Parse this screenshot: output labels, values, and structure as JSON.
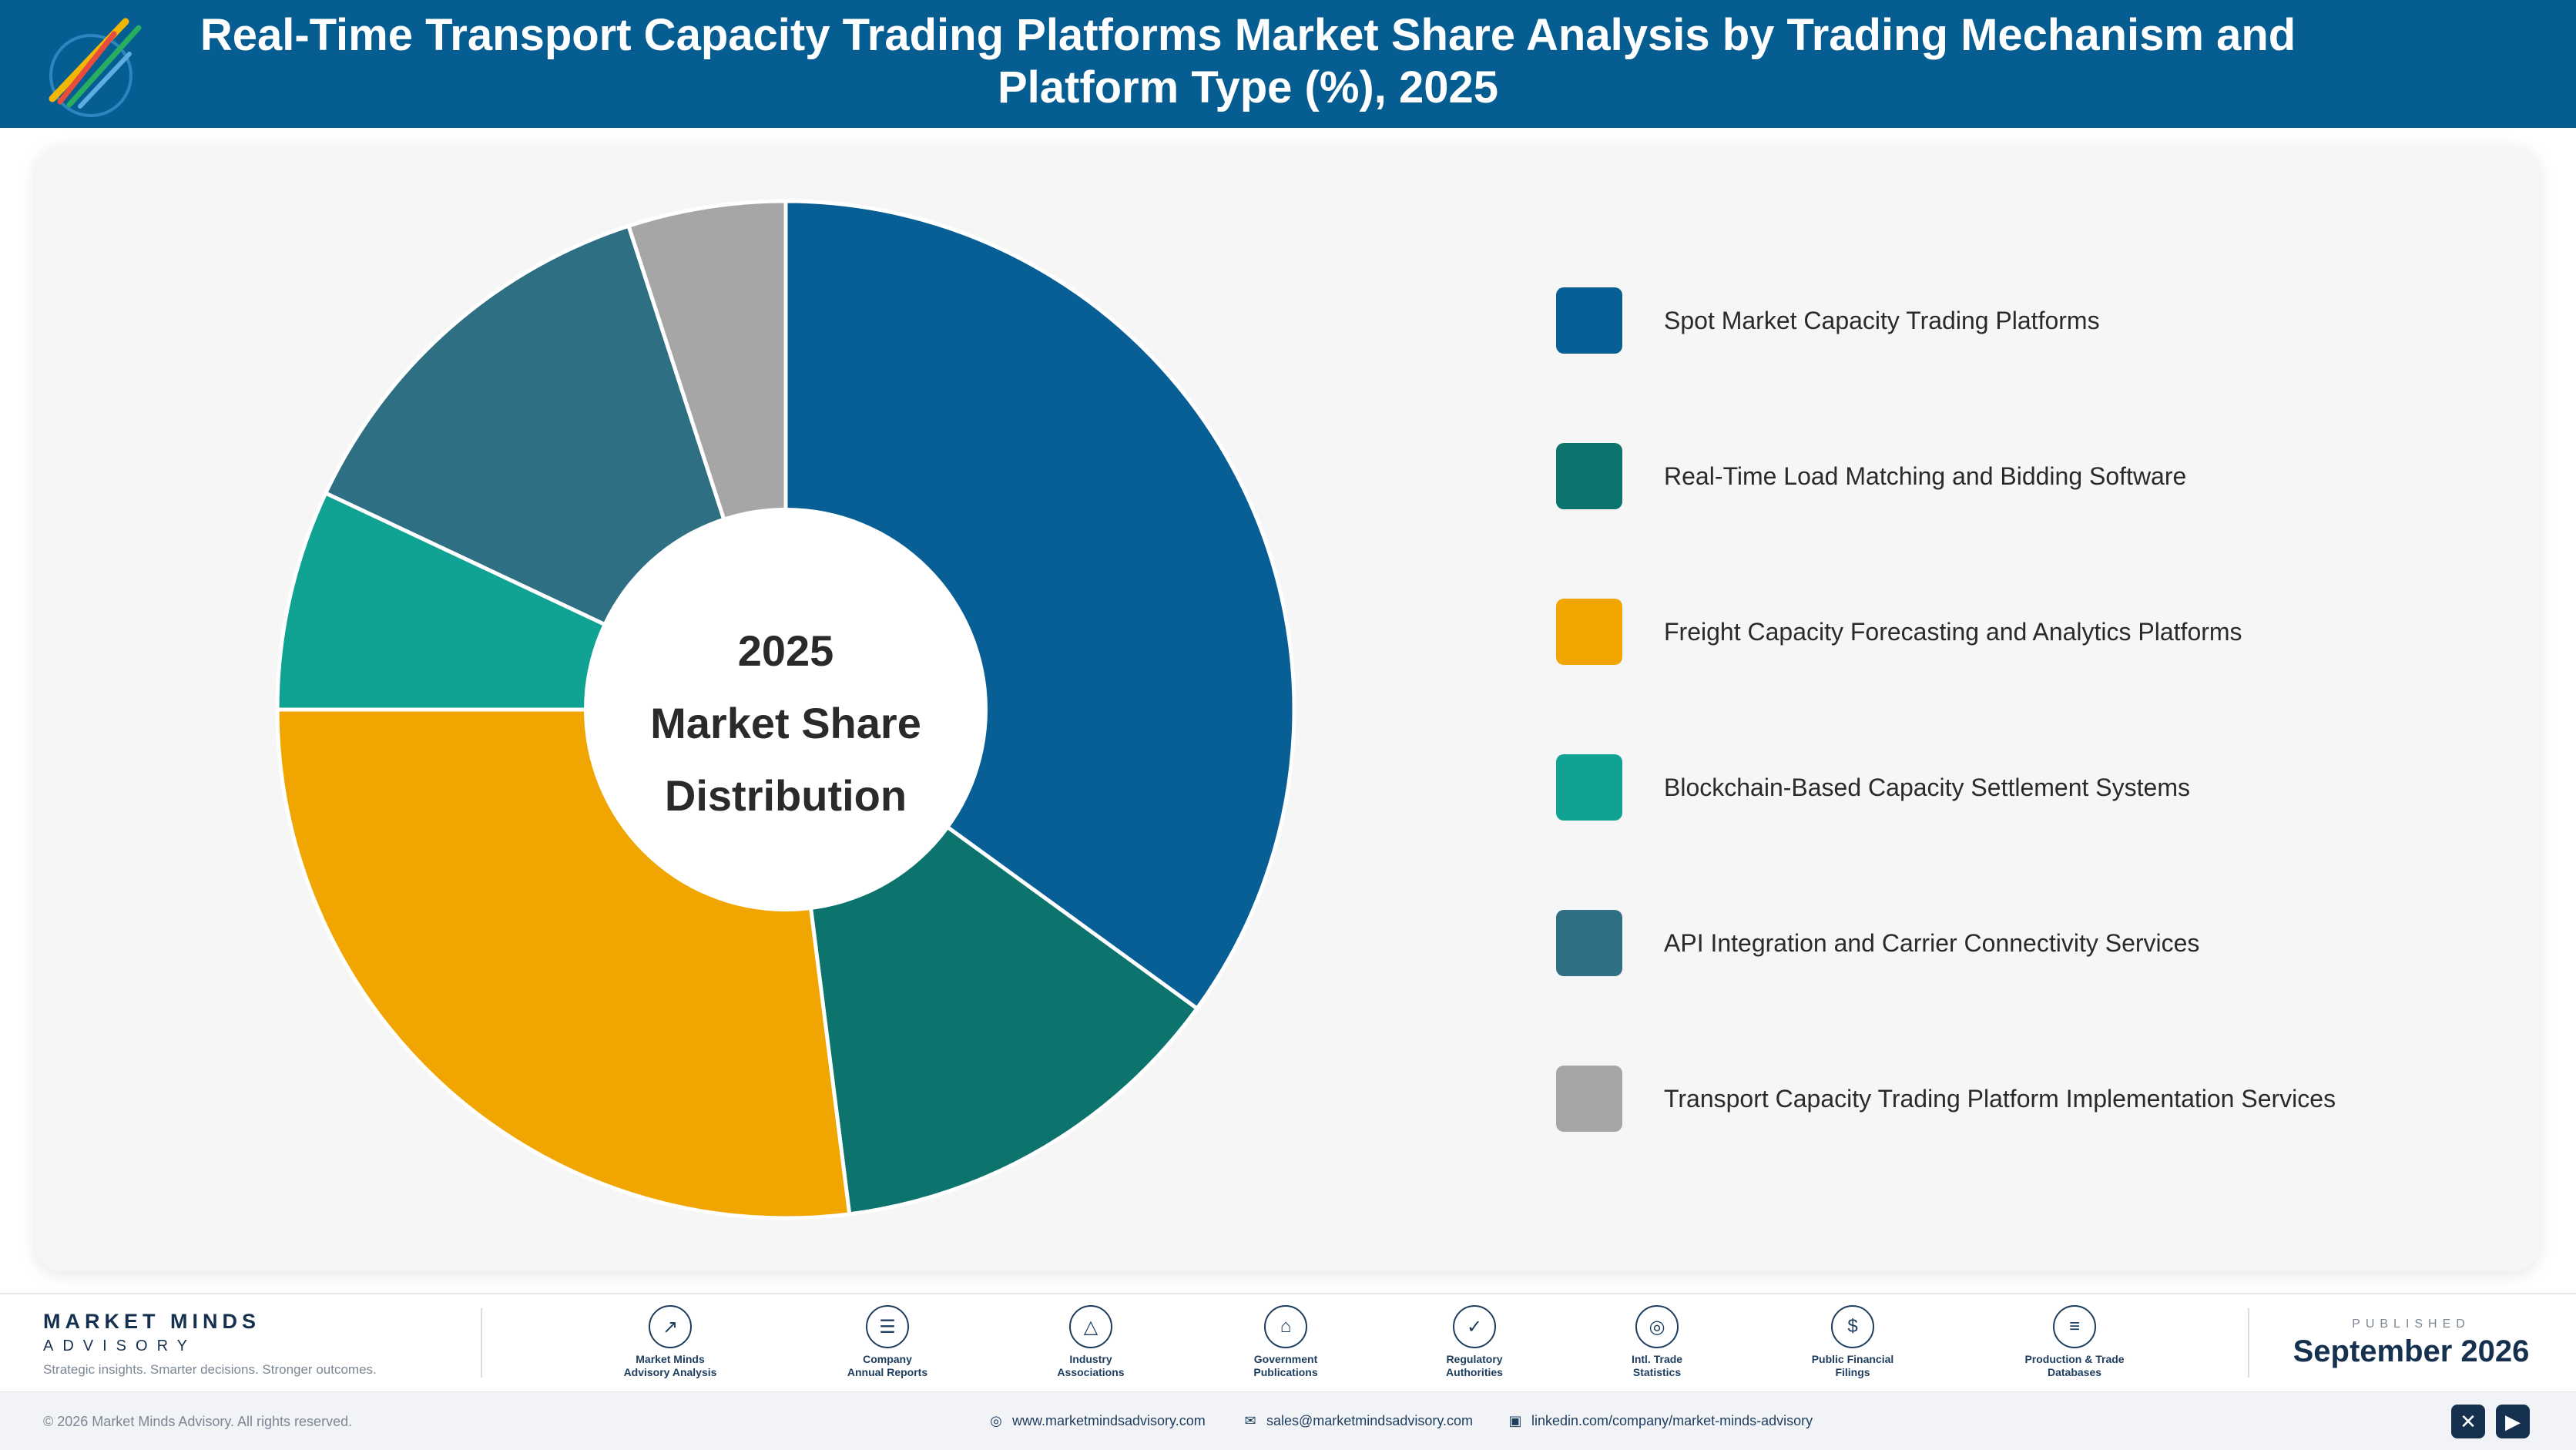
{
  "header": {
    "title": "Real-Time Transport Capacity Trading Platforms Market Share Analysis by Trading Mechanism and Platform Type (%), 2025"
  },
  "chart_data": {
    "type": "pie",
    "variant": "donut",
    "center_label": [
      "2025",
      "Market Share",
      "Distribution"
    ],
    "categories": [
      "Spot Market Capacity Trading Platforms",
      "Real-Time Load Matching and Bidding Software",
      "Freight Capacity Forecasting and Analytics Platforms",
      "Blockchain-Based Capacity Settlement Systems",
      "API Integration and Carrier Connectivity Services",
      "Transport Capacity Trading Platform Implementation Services"
    ],
    "values": [
      35,
      13,
      27,
      7,
      13,
      5
    ],
    "colors": [
      "#075f95",
      "#0c736d",
      "#f0a500",
      "#10a393",
      "#2f6f83",
      "#a6a6a6"
    ],
    "legend": "right",
    "start_angle": "12 o'clock",
    "direction": "clockwise"
  },
  "footer": {
    "brand_name": "MARKET MINDS",
    "brand_sub": "ADVISORY",
    "brand_tag": "Strategic insights. Smarter decisions. Stronger outcomes.",
    "sources": [
      {
        "label": "Market Minds\nAdvisory Analysis",
        "icon": "trend-icon"
      },
      {
        "label": "Company\nAnnual Reports",
        "icon": "document-icon"
      },
      {
        "label": "Industry\nAssociations",
        "icon": "network-icon"
      },
      {
        "label": "Government\nPublications",
        "icon": "building-icon"
      },
      {
        "label": "Regulatory\nAuthorities",
        "icon": "shield-icon"
      },
      {
        "label": "Intl. Trade\nStatistics",
        "icon": "globe-icon"
      },
      {
        "label": "Public Financial\nFilings",
        "icon": "coin-icon"
      },
      {
        "label": "Production & Trade\nDatabases",
        "icon": "database-icon"
      }
    ],
    "published_label": "PUBLISHED",
    "published_date": "September 2026",
    "copyright": "© 2026 Market Minds Advisory. All rights reserved.",
    "website": "www.marketmindsadvisory.com",
    "email": "sales@marketmindsadvisory.com",
    "linkedin": "linkedin.com/company/market-minds-advisory"
  }
}
